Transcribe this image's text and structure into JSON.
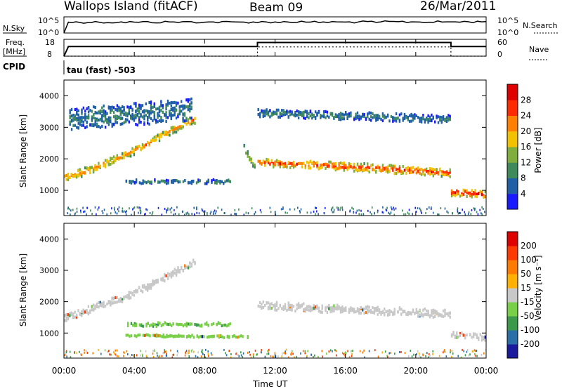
{
  "header": {
    "station": "Wallops Island (fitACF)",
    "beam": "Beam 09",
    "date": "26/Mar/2011"
  },
  "nsky_panel": {
    "left_label": "N.Sky",
    "left_ticks": [
      "10^5",
      "10^0"
    ],
    "right_label": "N.Search",
    "right_ticks": [
      "10^5",
      "10^0"
    ]
  },
  "freq_panel": {
    "left_label_1": "Freq.",
    "left_label_2": "[MHz]",
    "left_ticks": [
      "18",
      "8"
    ],
    "right_label": "Nave",
    "right_ticks": [
      "60",
      "0"
    ]
  },
  "cpid": {
    "label": "CPID",
    "value": "tau (fast) -503"
  },
  "axes": {
    "ylabel": "Slant Range [km]",
    "xlabel": "Time UT",
    "y_ticks": [
      "1000",
      "2000",
      "3000",
      "4000"
    ],
    "x_ticks": [
      "00:00",
      "04:00",
      "08:00",
      "12:00",
      "16:00",
      "20:00",
      "00:00"
    ]
  },
  "power_colorbar": {
    "label": "Power [dB]",
    "ticks": [
      "4",
      "8",
      "12",
      "16",
      "20",
      "24",
      "28"
    ],
    "colors": [
      "#1a1aff",
      "#1f5fa8",
      "#3e8a5a",
      "#7fae3c",
      "#f2c200",
      "#ff8000",
      "#ff2a00",
      "#e00000"
    ]
  },
  "velocity_colorbar": {
    "label": "Velocity [m s⁻¹]",
    "ticks": [
      "200",
      "100",
      "50",
      "15",
      "-15",
      "-50",
      "-100",
      "-200"
    ],
    "colors": [
      "#1a1a9e",
      "#2b6fa8",
      "#3a9a4a",
      "#77d045",
      "#c8c8c8",
      "#ffb000",
      "#ff7a00",
      "#ff3a00",
      "#e00000"
    ]
  },
  "chart_data": [
    {
      "type": "line",
      "title": "N.Sky / N.Search",
      "x_range_hours": [
        0,
        24
      ],
      "series": [
        {
          "kind": "nsky",
          "x": [
            0,
            0.25,
            2,
            4,
            6,
            8,
            10,
            12,
            14,
            16,
            18,
            20,
            22,
            24
          ],
          "y": [
            1,
            3000,
            3000,
            3200,
            3500,
            3100,
            3300,
            3600,
            3200,
            3400,
            3800,
            3600,
            4000,
            4500
          ]
        }
      ]
    },
    {
      "type": "line",
      "title": "Freq. [MHz] / Nave",
      "series": [
        {
          "kind": "freq",
          "x": [
            0,
            0.2,
            0.25,
            11,
            11,
            22,
            22,
            24
          ],
          "y": [
            0,
            8,
            10.3,
            10.3,
            14.6,
            14.6,
            10.3,
            10.3
          ]
        },
        {
          "kind": "nave",
          "x": [
            0,
            0.25,
            11,
            11,
            22,
            22,
            24
          ],
          "y": [
            0,
            0,
            0,
            33,
            33,
            0,
            0
          ]
        }
      ]
    },
    {
      "type": "heatmap",
      "title": "Power [dB]",
      "xlabel": "Time UT",
      "ylabel": "Slant Range [km]",
      "xlim": [
        0,
        24
      ],
      "ylim": [
        200,
        4500
      ],
      "bands": [
        {
          "kind": "ground-scatter",
          "t": [
            0,
            1,
            2,
            3,
            4,
            5,
            6,
            7,
            7.5
          ],
          "r": [
            1450,
            1600,
            1800,
            2050,
            2300,
            2600,
            2900,
            3200,
            3300
          ],
          "width": 250,
          "p": 20
        },
        {
          "kind": "f-region",
          "t": [
            0.3,
            7.3
          ],
          "r": [
            3300,
            3600
          ],
          "width": 700,
          "p": 8
        },
        {
          "kind": "e-band",
          "t": [
            3.5,
            9.5
          ],
          "r": [
            1320,
            1320
          ],
          "width": 130,
          "p": 8
        },
        {
          "kind": "dusk",
          "t": [
            10.2,
            10.9
          ],
          "r": [
            2400,
            1800
          ],
          "width": 250,
          "p": 14
        },
        {
          "kind": "main",
          "t": [
            11,
            16,
            22
          ],
          "r": [
            1930,
            1800,
            1600
          ],
          "width": 260,
          "p": 24
        },
        {
          "kind": "upper",
          "t": [
            11,
            22
          ],
          "r": [
            3500,
            3300
          ],
          "width": 250,
          "p": 8
        },
        {
          "kind": "late",
          "t": [
            22,
            24
          ],
          "r": [
            1000,
            900
          ],
          "width": 260,
          "p": 26
        }
      ]
    },
    {
      "type": "heatmap",
      "title": "Velocity [m s⁻¹]",
      "xlabel": "Time UT",
      "ylabel": "Slant Range [km]",
      "xlim": [
        0,
        24
      ],
      "ylim": [
        200,
        4500
      ],
      "bands": [
        {
          "kind": "ground-scatter",
          "t": [
            0,
            4,
            7.5
          ],
          "r": [
            1500,
            2300,
            3300
          ],
          "width": 250,
          "v": 0
        },
        {
          "kind": "e-band",
          "t": [
            3.5,
            9.5
          ],
          "r": [
            1320,
            1320
          ],
          "width": 130,
          "v": 40
        },
        {
          "kind": "lower-band",
          "t": [
            3.5,
            10.5
          ],
          "r": [
            970,
            920
          ],
          "width": 70,
          "v": 30
        },
        {
          "kind": "main",
          "t": [
            11,
            22
          ],
          "r": [
            1930,
            1650
          ],
          "width": 260,
          "v": 0
        },
        {
          "kind": "late",
          "t": [
            22,
            24
          ],
          "r": [
            1000,
            900
          ],
          "width": 180,
          "v": 0
        }
      ]
    }
  ]
}
